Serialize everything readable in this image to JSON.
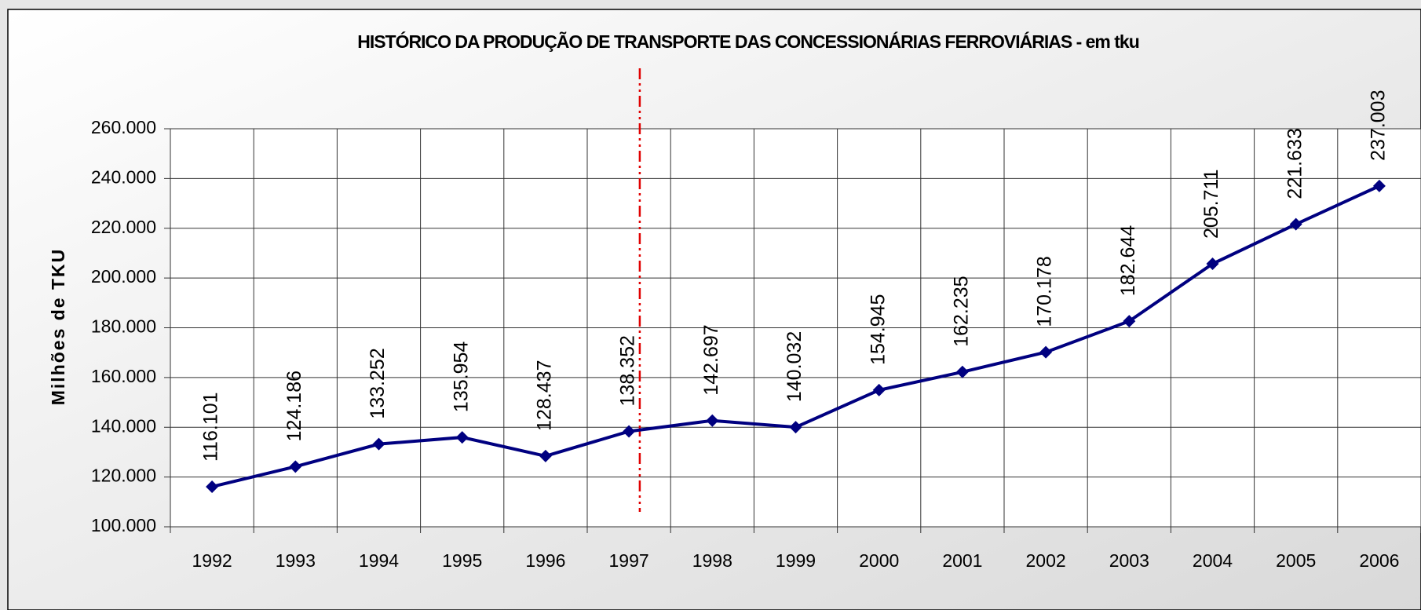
{
  "chart_data": {
    "type": "line",
    "title": "HISTÓRICO DA PRODUÇÃO DE TRANSPORTE DAS CONCESSIONÁRIAS FERROVIÁRIAS - em tku",
    "y_label": "Milhões de TKU",
    "categories": [
      "1992",
      "1993",
      "1994",
      "1995",
      "1996",
      "1997",
      "1998",
      "1999",
      "2000",
      "2001",
      "2002",
      "2003",
      "2004",
      "2005",
      "2006"
    ],
    "series": [
      {
        "name": "TKU",
        "color": "#000080",
        "values": [
          116101,
          124186,
          133252,
          135954,
          128437,
          138352,
          142697,
          140032,
          154945,
          162235,
          170178,
          182644,
          205711,
          221633,
          237003
        ],
        "value_labels": [
          "116.101",
          "124.186",
          "133.252",
          "135.954",
          "128.437",
          "138.352",
          "142.697",
          "140.032",
          "154.945",
          "162.235",
          "170.178",
          "182.644",
          "205.711",
          "221.633",
          "237.003"
        ]
      }
    ],
    "ylim": [
      100000,
      260000
    ],
    "yticks": [
      {
        "value": 100000,
        "label": "100.000"
      },
      {
        "value": 120000,
        "label": "120.000"
      },
      {
        "value": 140000,
        "label": "140.000"
      },
      {
        "value": 160000,
        "label": "160.000"
      },
      {
        "value": 180000,
        "label": "180.000"
      },
      {
        "value": 200000,
        "label": "200.000"
      },
      {
        "value": 220000,
        "label": "220.000"
      },
      {
        "value": 240000,
        "label": "240.000"
      },
      {
        "value": 260000,
        "label": "260.000"
      }
    ],
    "grid": true
  }
}
